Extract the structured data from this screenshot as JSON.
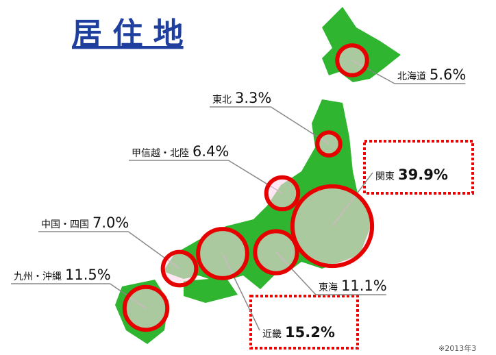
{
  "title": "居 住 地",
  "regions": [
    {
      "name": "北海道",
      "value": 5.6,
      "value_label": "5.6%"
    },
    {
      "name": "東北",
      "value": 3.3,
      "value_label": "3.3%"
    },
    {
      "name": "甲信越・北陸",
      "value": 6.4,
      "value_label": "6.4%"
    },
    {
      "name": "関東",
      "value": 39.9,
      "value_label": "39.9%"
    },
    {
      "name": "東海",
      "value": 11.1,
      "value_label": "11.1%"
    },
    {
      "name": "近畿",
      "value": 15.2,
      "value_label": "15.2%"
    },
    {
      "name": "中国・四国",
      "value": 7.0,
      "value_label": "7.0%"
    },
    {
      "name": "九州・沖縄",
      "value": 11.5,
      "value_label": "11.5%"
    }
  ],
  "note": "※2013年3"
}
